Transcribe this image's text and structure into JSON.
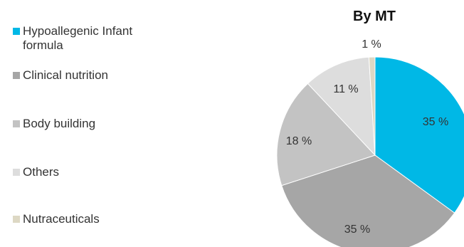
{
  "chart_data": {
    "type": "pie",
    "title": "By MT",
    "legend_position": "left",
    "slices": [
      {
        "name": "Hypoallegenic Infant\nformula",
        "value": 35,
        "label": "35 %",
        "color": "#00b8e6"
      },
      {
        "name": "Clinical nutrition",
        "value": 35,
        "label": "35 %",
        "color": "#a6a6a6"
      },
      {
        "name": "Body building",
        "value": 18,
        "label": "18 %",
        "color": "#c3c3c3"
      },
      {
        "name": "Others",
        "value": 11,
        "label": "11 %",
        "color": "#dddddd"
      },
      {
        "name": "Nutraceuticals",
        "value": 1,
        "label": "1 %",
        "color": "#ddd8c4"
      }
    ]
  }
}
